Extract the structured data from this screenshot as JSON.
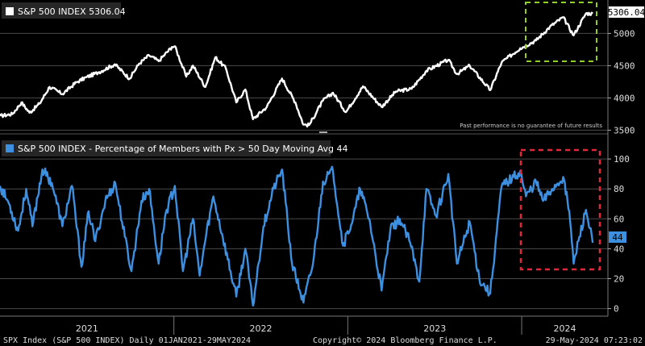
{
  "chart_data": [
    {
      "type": "line",
      "title": "S&P 500 INDEX",
      "legend_value": "5306.04",
      "last_value_label": "5306.04",
      "legend_color": "#ffffff",
      "series": [
        {
          "name": "S&P 500 INDEX",
          "color": "#ffffff",
          "points": [
            [
              "2021-01-01",
              3720
            ],
            [
              "2021-01-27",
              3750
            ],
            [
              "2021-02-15",
              3930
            ],
            [
              "2021-03-04",
              3770
            ],
            [
              "2021-03-25",
              3910
            ],
            [
              "2021-04-15",
              4170
            ],
            [
              "2021-05-12",
              4060
            ],
            [
              "2021-06-10",
              4240
            ],
            [
              "2021-07-01",
              4320
            ],
            [
              "2021-07-28",
              4400
            ],
            [
              "2021-08-30",
              4520
            ],
            [
              "2021-09-30",
              4300
            ],
            [
              "2021-10-20",
              4530
            ],
            [
              "2021-11-10",
              4660
            ],
            [
              "2021-11-30",
              4570
            ],
            [
              "2021-12-28",
              4790
            ],
            [
              "2022-01-03",
              4800
            ],
            [
              "2022-01-27",
              4330
            ],
            [
              "2022-02-10",
              4500
            ],
            [
              "2022-03-08",
              4170
            ],
            [
              "2022-03-29",
              4630
            ],
            [
              "2022-04-20",
              4460
            ],
            [
              "2022-05-12",
              3930
            ],
            [
              "2022-05-31",
              4130
            ],
            [
              "2022-06-16",
              3670
            ],
            [
              "2022-07-15",
              3860
            ],
            [
              "2022-08-16",
              4300
            ],
            [
              "2022-09-13",
              3930
            ],
            [
              "2022-09-30",
              3585
            ],
            [
              "2022-10-12",
              3580
            ],
            [
              "2022-11-10",
              3960
            ],
            [
              "2022-12-01",
              4080
            ],
            [
              "2022-12-28",
              3780
            ],
            [
              "2023-02-02",
              4180
            ],
            [
              "2023-03-13",
              3860
            ],
            [
              "2023-04-12",
              4100
            ],
            [
              "2023-05-15",
              4140
            ],
            [
              "2023-06-15",
              4420
            ],
            [
              "2023-07-31",
              4590
            ],
            [
              "2023-08-18",
              4370
            ],
            [
              "2023-09-14",
              4500
            ],
            [
              "2023-10-27",
              4120
            ],
            [
              "2023-11-20",
              4550
            ],
            [
              "2023-12-29",
              4770
            ],
            [
              "2024-01-31",
              4890
            ],
            [
              "2024-02-29",
              5100
            ],
            [
              "2024-03-28",
              5250
            ],
            [
              "2024-04-19",
              4970
            ],
            [
              "2024-05-15",
              5310
            ],
            [
              "2024-05-29",
              5306
            ]
          ]
        }
      ],
      "y_ticks": [
        "5000",
        "4500",
        "4000",
        "3500"
      ],
      "ylim": [
        3480,
        5480
      ],
      "grid": true,
      "annotation": "Past performance is no guarantee of future results",
      "highlight_color": "#8fd129"
    },
    {
      "type": "line",
      "title": "S&P 500 INDEX - Percentage of Members with Px > 50 Day Moving Avg",
      "legend_value": "44",
      "last_value_label": "44",
      "legend_color": "#3d8fe0",
      "series": [
        {
          "name": "S&P 500 INDEX - Percentage of Members with Px > 50 Day Moving Avg",
          "color": "#3d8fe0",
          "points": [
            [
              "2021-01-01",
              82
            ],
            [
              "2021-01-20",
              70
            ],
            [
              "2021-02-08",
              52
            ],
            [
              "2021-02-25",
              80
            ],
            [
              "2021-03-10",
              55
            ],
            [
              "2021-03-31",
              93
            ],
            [
              "2021-04-20",
              84
            ],
            [
              "2021-05-12",
              55
            ],
            [
              "2021-06-01",
              82
            ],
            [
              "2021-06-21",
              28
            ],
            [
              "2021-07-06",
              65
            ],
            [
              "2021-07-20",
              45
            ],
            [
              "2021-08-10",
              72
            ],
            [
              "2021-08-31",
              84
            ],
            [
              "2021-09-20",
              48
            ],
            [
              "2021-10-04",
              25
            ],
            [
              "2021-10-25",
              72
            ],
            [
              "2021-11-10",
              80
            ],
            [
              "2021-11-30",
              30
            ],
            [
              "2021-12-15",
              64
            ],
            [
              "2022-01-03",
              82
            ],
            [
              "2022-01-20",
              25
            ],
            [
              "2022-02-10",
              60
            ],
            [
              "2022-02-24",
              22
            ],
            [
              "2022-03-10",
              50
            ],
            [
              "2022-03-25",
              75
            ],
            [
              "2022-04-12",
              50
            ],
            [
              "2022-05-12",
              8
            ],
            [
              "2022-05-31",
              40
            ],
            [
              "2022-06-16",
              2
            ],
            [
              "2022-07-08",
              55
            ],
            [
              "2022-07-29",
              80
            ],
            [
              "2022-08-16",
              93
            ],
            [
              "2022-09-06",
              30
            ],
            [
              "2022-09-30",
              4
            ],
            [
              "2022-10-20",
              30
            ],
            [
              "2022-11-10",
              85
            ],
            [
              "2022-12-01",
              92
            ],
            [
              "2022-12-22",
              42
            ],
            [
              "2023-01-12",
              60
            ],
            [
              "2023-01-27",
              80
            ],
            [
              "2023-02-15",
              60
            ],
            [
              "2023-03-13",
              12
            ],
            [
              "2023-03-31",
              52
            ],
            [
              "2023-04-20",
              60
            ],
            [
              "2023-05-12",
              44
            ],
            [
              "2023-05-31",
              18
            ],
            [
              "2023-06-15",
              80
            ],
            [
              "2023-07-05",
              62
            ],
            [
              "2023-07-31",
              90
            ],
            [
              "2023-08-18",
              30
            ],
            [
              "2023-09-14",
              58
            ],
            [
              "2023-10-04",
              20
            ],
            [
              "2023-10-27",
              10
            ],
            [
              "2023-11-20",
              82
            ],
            [
              "2023-12-15",
              88
            ],
            [
              "2023-12-29",
              92
            ],
            [
              "2024-01-10",
              75
            ],
            [
              "2024-01-31",
              85
            ],
            [
              "2024-02-15",
              72
            ],
            [
              "2024-03-05",
              80
            ],
            [
              "2024-03-28",
              88
            ],
            [
              "2024-04-10",
              65
            ],
            [
              "2024-04-19",
              30
            ],
            [
              "2024-05-01",
              48
            ],
            [
              "2024-05-15",
              66
            ],
            [
              "2024-05-29",
              44
            ]
          ]
        }
      ],
      "y_ticks": [
        "100",
        "80",
        "60",
        "40",
        "20",
        "0"
      ],
      "ylim": [
        -4,
        106
      ],
      "grid": true,
      "highlight_color": "#e0283c"
    }
  ],
  "x_axis": {
    "labels": [
      "2021",
      "2022",
      "2023",
      "2024"
    ],
    "range": [
      "2021-01-01",
      "2024-06-30"
    ]
  },
  "footer": {
    "left": "SPX Index (S&P 500 INDEX)  Daily 01JAN2021-29MAY2024",
    "center": "Copyright© 2024 Bloomberg Finance L.P.",
    "right": "29-May-2024 07:23:02"
  }
}
